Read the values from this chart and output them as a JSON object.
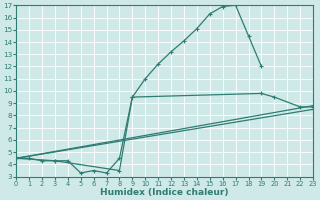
{
  "xlabel": "Humidex (Indice chaleur)",
  "xlim": [
    0,
    23
  ],
  "ylim": [
    3,
    17
  ],
  "xticks": [
    0,
    1,
    2,
    3,
    4,
    5,
    6,
    7,
    8,
    9,
    10,
    11,
    12,
    13,
    14,
    15,
    16,
    17,
    18,
    19,
    20,
    21,
    22,
    23
  ],
  "yticks": [
    3,
    4,
    5,
    6,
    7,
    8,
    9,
    10,
    11,
    12,
    13,
    14,
    15,
    16,
    17
  ],
  "bg_color": "#cfe8e8",
  "line_color": "#2e7d72",
  "grid_color": "#ffffff",
  "line_curves": [
    {
      "x": [
        0,
        1,
        2,
        3,
        4,
        5,
        6,
        7,
        8,
        9,
        10,
        11,
        12,
        13,
        14,
        15,
        16,
        17,
        18,
        19
      ],
      "y": [
        4.5,
        4.5,
        4.3,
        4.3,
        4.3,
        3.3,
        3.5,
        3.3,
        4.5,
        9.5,
        11.0,
        12.2,
        13.2,
        14.1,
        15.1,
        16.3,
        16.9,
        17.0,
        14.5,
        12.0
      ]
    },
    {
      "x": [
        0,
        23
      ],
      "y": [
        4.5,
        8.5
      ]
    },
    {
      "x": [
        0,
        23
      ],
      "y": [
        4.5,
        8.8
      ]
    },
    {
      "x": [
        0,
        3,
        8,
        9,
        19,
        20,
        22,
        23
      ],
      "y": [
        4.5,
        4.3,
        3.5,
        9.5,
        9.8,
        9.5,
        8.7,
        8.7
      ]
    }
  ]
}
